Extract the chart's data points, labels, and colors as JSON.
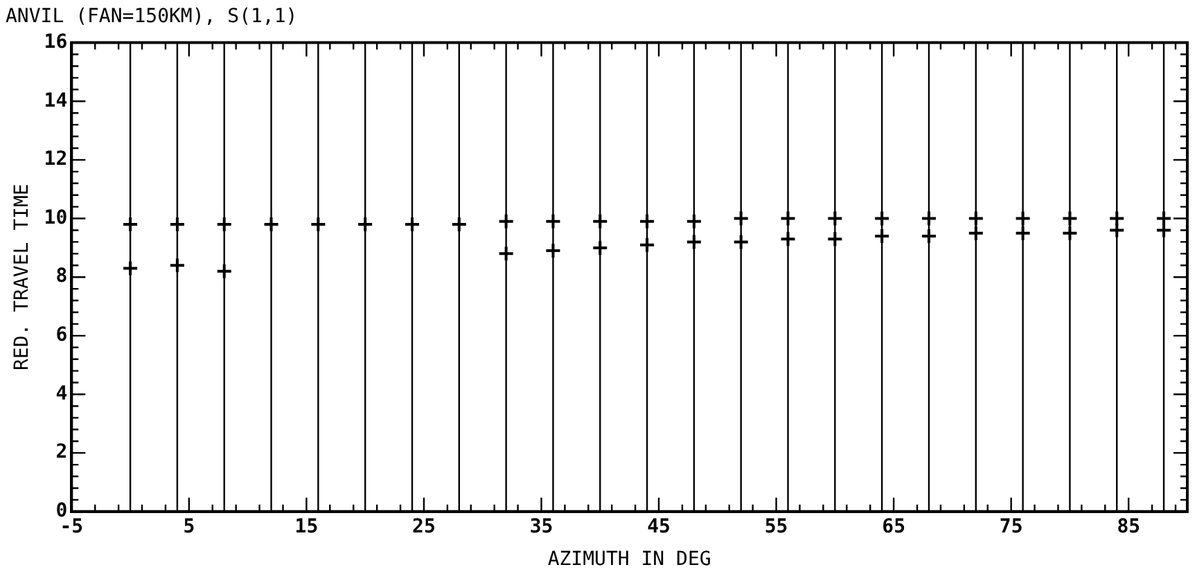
{
  "chart_data": {
    "type": "scatter",
    "title": "ANVIL (FAN=150KM), S(1,1)",
    "xlabel": "AZIMUTH IN DEG",
    "ylabel": "RED. TRAVEL TIME",
    "x": [
      0,
      4,
      8,
      12,
      16,
      20,
      24,
      28,
      32,
      36,
      40,
      44,
      48,
      52,
      56,
      60,
      64,
      68,
      72,
      76,
      80,
      84,
      88
    ],
    "series": [
      {
        "color": "#000000",
        "values": [
          9.8,
          9.8,
          9.8,
          9.8,
          9.8,
          9.8,
          9.8,
          9.8,
          9.9,
          9.9,
          9.9,
          9.9,
          9.9,
          10.0,
          10.0,
          10.0,
          10.0,
          10.0,
          10.0,
          10.0,
          10.0,
          10.0,
          10.0
        ]
      },
      {
        "color": "#000000",
        "values": [
          8.3,
          8.4,
          8.2,
          null,
          null,
          null,
          null,
          null,
          8.8,
          8.9,
          9.0,
          9.1,
          9.2,
          9.2,
          9.3,
          9.3,
          9.4,
          9.4,
          9.5,
          9.5,
          9.5,
          9.6,
          9.6
        ]
      }
    ],
    "ref_lines": [
      {
        "axis": "x",
        "value": 0,
        "color": "#000000"
      },
      {
        "axis": "x",
        "value": 4,
        "color": "#000000"
      },
      {
        "axis": "x",
        "value": 8,
        "color": "#000000"
      },
      {
        "axis": "x",
        "value": 12,
        "color": "#000000"
      },
      {
        "axis": "x",
        "value": 16,
        "color": "#000000"
      },
      {
        "axis": "x",
        "value": 20,
        "color": "#000000"
      },
      {
        "axis": "x",
        "value": 24,
        "color": "#000000"
      },
      {
        "axis": "x",
        "value": 28,
        "color": "#000000"
      },
      {
        "axis": "x",
        "value": 32,
        "color": "#000000"
      },
      {
        "axis": "x",
        "value": 36,
        "color": "#000000"
      },
      {
        "axis": "x",
        "value": 40,
        "color": "#000000"
      },
      {
        "axis": "x",
        "value": 44,
        "color": "#000000"
      },
      {
        "axis": "x",
        "value": 48,
        "color": "#000000"
      },
      {
        "axis": "x",
        "value": 52,
        "color": "#000000"
      },
      {
        "axis": "x",
        "value": 56,
        "color": "#000000"
      },
      {
        "axis": "x",
        "value": 60,
        "color": "#000000"
      },
      {
        "axis": "x",
        "value": 64,
        "color": "#000000"
      },
      {
        "axis": "x",
        "value": 68,
        "color": "#000000"
      },
      {
        "axis": "x",
        "value": 72,
        "color": "#000000"
      },
      {
        "axis": "x",
        "value": 76,
        "color": "#000000"
      },
      {
        "axis": "x",
        "value": 80,
        "color": "#000000"
      },
      {
        "axis": "x",
        "value": 84,
        "color": "#000000"
      },
      {
        "axis": "x",
        "value": 88,
        "color": "#000000"
      }
    ],
    "xlim": [
      -5,
      90
    ],
    "xticks": [
      -5,
      5,
      15,
      25,
      35,
      45,
      55,
      65,
      75,
      85
    ],
    "ylim": [
      0,
      16
    ],
    "yticks": [
      0,
      2,
      4,
      6,
      8,
      10,
      12,
      14,
      16
    ],
    "marker": "cross",
    "grid": false,
    "legend": false
  }
}
